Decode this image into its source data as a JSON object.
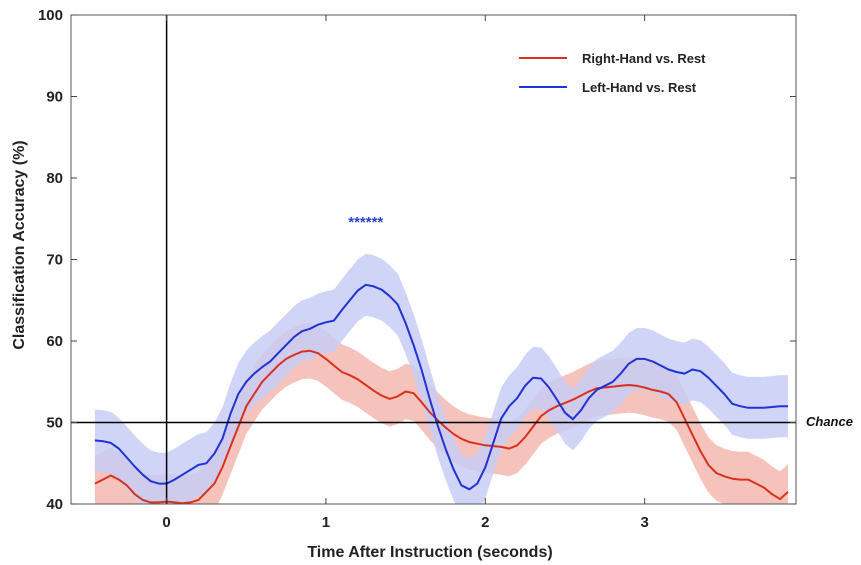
{
  "chart_data": {
    "type": "line",
    "xlabel": "Time After Instruction (seconds)",
    "ylabel": "Classification Accuracy (%)",
    "xlim": [
      -0.6,
      3.95
    ],
    "ylim": [
      40,
      100
    ],
    "xticks": [
      0,
      1,
      2,
      3
    ],
    "yticks": [
      40,
      50,
      60,
      70,
      80,
      90,
      100
    ],
    "grid": false,
    "legend_position": "top-right",
    "reference_lines": [
      {
        "axis": "y",
        "value": 50,
        "label": "Chance"
      },
      {
        "axis": "x",
        "value": 0,
        "label": ""
      }
    ],
    "annotation": {
      "text": "******",
      "x": 1.25,
      "y": 75,
      "color": "#2a3fd6"
    },
    "series": [
      {
        "name": "Right-Hand vs. Rest",
        "color": "#d8321e",
        "band_color": "#f4b8b0",
        "x": [
          -0.45,
          -0.4,
          -0.35,
          -0.3,
          -0.25,
          -0.2,
          -0.15,
          -0.1,
          -0.05,
          0.0,
          0.05,
          0.1,
          0.15,
          0.2,
          0.25,
          0.3,
          0.35,
          0.4,
          0.45,
          0.5,
          0.55,
          0.6,
          0.65,
          0.7,
          0.75,
          0.8,
          0.85,
          0.9,
          0.95,
          1.0,
          1.05,
          1.1,
          1.15,
          1.2,
          1.25,
          1.3,
          1.35,
          1.4,
          1.45,
          1.5,
          1.55,
          1.6,
          1.65,
          1.7,
          1.75,
          1.8,
          1.85,
          1.9,
          1.95,
          2.0,
          2.05,
          2.1,
          2.15,
          2.2,
          2.25,
          2.3,
          2.35,
          2.4,
          2.45,
          2.5,
          2.55,
          2.6,
          2.65,
          2.7,
          2.75,
          2.8,
          2.85,
          2.9,
          2.95,
          3.0,
          3.05,
          3.1,
          3.15,
          3.2,
          3.25,
          3.3,
          3.35,
          3.4,
          3.45,
          3.5,
          3.55,
          3.6,
          3.65,
          3.7,
          3.75,
          3.8,
          3.85,
          3.9
        ],
        "values": [
          42.5,
          43.0,
          43.5,
          43.0,
          42.3,
          41.2,
          40.5,
          40.2,
          40.2,
          40.3,
          40.2,
          40.1,
          40.2,
          40.5,
          41.5,
          42.5,
          44.5,
          47.0,
          49.5,
          52.0,
          53.5,
          55.0,
          56.0,
          57.0,
          57.8,
          58.3,
          58.7,
          58.8,
          58.5,
          57.8,
          57.0,
          56.2,
          55.8,
          55.3,
          54.6,
          53.9,
          53.3,
          52.9,
          53.2,
          53.8,
          53.6,
          52.5,
          51.3,
          50.3,
          49.4,
          48.6,
          48.0,
          47.6,
          47.4,
          47.2,
          47.1,
          47.0,
          46.8,
          47.2,
          48.2,
          49.5,
          50.8,
          51.5,
          52.0,
          52.4,
          52.8,
          53.3,
          53.8,
          54.2,
          54.3,
          54.4,
          54.5,
          54.6,
          54.5,
          54.3,
          54.0,
          53.8,
          53.5,
          52.5,
          50.5,
          48.5,
          46.5,
          44.8,
          43.8,
          43.4,
          43.1,
          43.0,
          43.0,
          42.5,
          42.0,
          41.2,
          40.6,
          41.5
        ],
        "band": 3.4
      },
      {
        "name": "Left-Hand vs. Rest",
        "color": "#2133d2",
        "band_color": "#c8ccf6",
        "x": [
          -0.45,
          -0.4,
          -0.35,
          -0.3,
          -0.25,
          -0.2,
          -0.15,
          -0.1,
          -0.05,
          0.0,
          0.05,
          0.1,
          0.15,
          0.2,
          0.25,
          0.3,
          0.35,
          0.4,
          0.45,
          0.5,
          0.55,
          0.6,
          0.65,
          0.7,
          0.75,
          0.8,
          0.85,
          0.9,
          0.95,
          1.0,
          1.05,
          1.1,
          1.15,
          1.2,
          1.25,
          1.3,
          1.35,
          1.4,
          1.45,
          1.5,
          1.55,
          1.6,
          1.65,
          1.7,
          1.75,
          1.8,
          1.85,
          1.9,
          1.95,
          2.0,
          2.05,
          2.1,
          2.15,
          2.2,
          2.25,
          2.3,
          2.35,
          2.4,
          2.45,
          2.5,
          2.55,
          2.6,
          2.65,
          2.7,
          2.75,
          2.8,
          2.85,
          2.9,
          2.95,
          3.0,
          3.05,
          3.1,
          3.15,
          3.2,
          3.25,
          3.3,
          3.35,
          3.4,
          3.45,
          3.5,
          3.55,
          3.6,
          3.65,
          3.7,
          3.75,
          3.8,
          3.85,
          3.9
        ],
        "values": [
          47.8,
          47.7,
          47.5,
          46.8,
          45.7,
          44.6,
          43.6,
          42.8,
          42.5,
          42.5,
          43.0,
          43.6,
          44.2,
          44.8,
          45.0,
          46.2,
          48.0,
          51.0,
          53.5,
          55.0,
          56.0,
          56.8,
          57.5,
          58.5,
          59.5,
          60.5,
          61.2,
          61.5,
          62.0,
          62.3,
          62.5,
          63.8,
          65.0,
          66.2,
          66.9,
          66.7,
          66.3,
          65.5,
          64.5,
          62.2,
          59.5,
          56.5,
          53.0,
          49.7,
          46.8,
          44.3,
          42.3,
          41.8,
          42.5,
          44.5,
          47.5,
          50.5,
          52.0,
          53.0,
          54.5,
          55.5,
          55.4,
          54.3,
          52.8,
          51.2,
          50.4,
          51.5,
          53.0,
          54.0,
          54.5,
          55.0,
          56.0,
          57.2,
          57.8,
          57.8,
          57.5,
          57.0,
          56.5,
          56.2,
          56.0,
          56.5,
          56.3,
          55.5,
          54.5,
          53.5,
          52.3,
          52.0,
          51.8,
          51.8,
          51.8,
          51.9,
          52.0,
          52.0
        ],
        "band": 3.8
      }
    ]
  }
}
